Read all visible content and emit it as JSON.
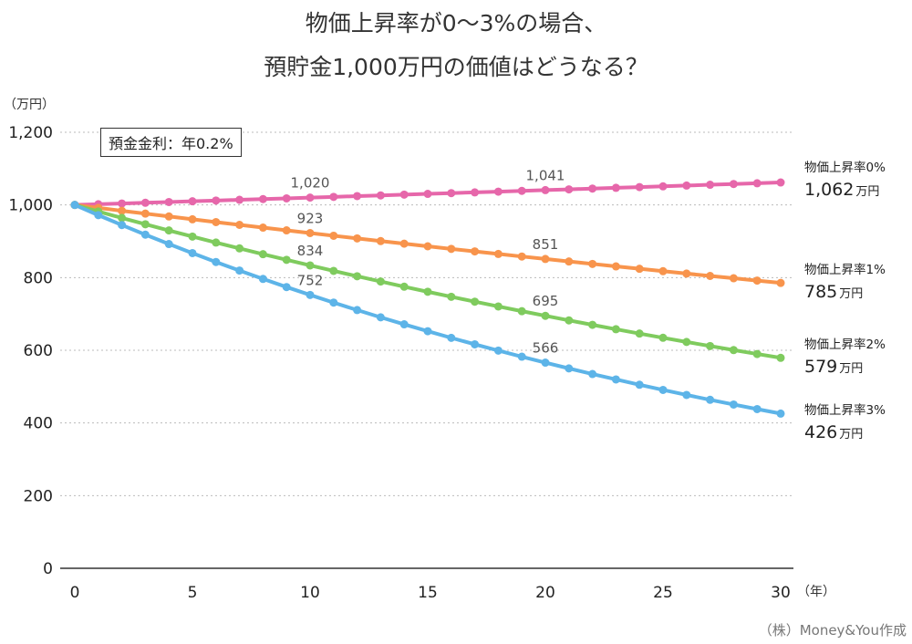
{
  "chart_data": {
    "type": "line",
    "title_line1": "物価上昇率が0～3%の場合、",
    "title_line2": "預貯金1,000万円の価値はどうなる？",
    "y_unit": "（万円）",
    "x_unit": "（年）",
    "annotation": "預金金利：年0.2%",
    "source": "（株）Money&You作成",
    "xlim": [
      0,
      30
    ],
    "ylim": [
      0,
      1200
    ],
    "grid": "horizontal dotted",
    "x_ticks": [
      0,
      5,
      10,
      15,
      20,
      25,
      30
    ],
    "y_ticks": [
      0,
      200,
      400,
      600,
      800,
      1000,
      1200
    ],
    "y_tick_labels": [
      "0",
      "200",
      "400",
      "600",
      "800",
      "1,000",
      "1,200"
    ],
    "x_tick_labels": [
      "0",
      "5",
      "10",
      "15",
      "20",
      "25",
      "30"
    ],
    "x": [
      0,
      1,
      2,
      3,
      4,
      5,
      6,
      7,
      8,
      9,
      10,
      11,
      12,
      13,
      14,
      15,
      16,
      17,
      18,
      19,
      20,
      21,
      22,
      23,
      24,
      25,
      26,
      27,
      28,
      29,
      30
    ],
    "series": [
      {
        "name": "物価上昇率0%",
        "color": "#e667aa",
        "end_value": "1,062",
        "end_unit": "万円",
        "data_labels": [
          {
            "x": 10,
            "text": "1,020"
          },
          {
            "x": 20,
            "text": "1,041"
          }
        ],
        "values": [
          1000,
          1002,
          1004,
          1006,
          1008,
          1010,
          1012.1,
          1014.1,
          1016.1,
          1018.1,
          1020.2,
          1022.2,
          1024.3,
          1026.3,
          1028.4,
          1030.4,
          1032.5,
          1034.6,
          1036.6,
          1038.7,
          1040.8,
          1042.9,
          1045,
          1047.1,
          1049.1,
          1051.2,
          1053.3,
          1055.5,
          1057.6,
          1059.7,
          1061.8
        ]
      },
      {
        "name": "物価上昇率1%",
        "color": "#f8944c",
        "end_value": "785",
        "end_unit": "万円",
        "data_labels": [
          {
            "x": 10,
            "text": "923"
          },
          {
            "x": 20,
            "text": "851"
          }
        ],
        "values": [
          1000,
          992,
          983.9,
          976.1,
          968.3,
          960.5,
          952.8,
          945.2,
          937.6,
          930.1,
          922.6,
          915.2,
          907.9,
          900.6,
          893.4,
          886.2,
          879.1,
          872.1,
          865.1,
          858.1,
          851.3,
          844.4,
          837.7,
          830.9,
          824.3,
          817.7,
          811.1,
          804.6,
          798.2,
          791.8,
          785.4
        ]
      },
      {
        "name": "物価上昇率2%",
        "color": "#7fcb5e",
        "end_value": "579",
        "end_unit": "万円",
        "data_labels": [
          {
            "x": 10,
            "text": "834"
          },
          {
            "x": 20,
            "text": "695"
          }
        ],
        "values": [
          1000,
          982,
          964.2,
          946.9,
          929.8,
          913,
          896.5,
          880.4,
          864.5,
          848.9,
          833.6,
          818.5,
          803.8,
          789.3,
          775,
          761,
          747.3,
          733.8,
          720.6,
          707.6,
          694.9,
          682.3,
          670,
          657.9,
          646,
          634.4,
          622.9,
          611.7,
          600.6,
          589.8,
          579.2
        ]
      },
      {
        "name": "物価上昇率3%",
        "color": "#5db4e8",
        "end_value": "426",
        "end_unit": "万円",
        "data_labels": [
          {
            "x": 10,
            "text": "752"
          },
          {
            "x": 20,
            "text": "566"
          }
        ],
        "values": [
          1000,
          971.9,
          944.7,
          918.2,
          892.4,
          867.4,
          843,
          819.4,
          796.4,
          774,
          752.3,
          731.2,
          710.7,
          690.7,
          671.4,
          652.5,
          634.2,
          616.4,
          599.1,
          582.3,
          566,
          550.1,
          534.7,
          519.7,
          505.1,
          490.9,
          477.1,
          463.7,
          450.7,
          438.1,
          425.8
        ]
      }
    ]
  }
}
